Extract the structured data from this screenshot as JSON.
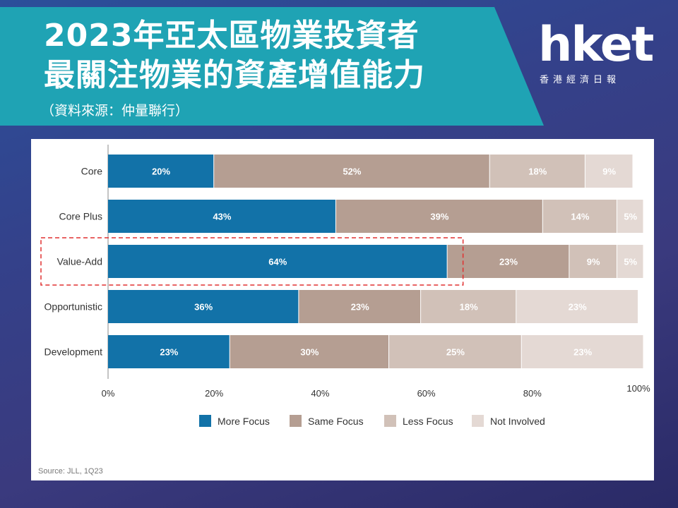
{
  "header": {
    "title_line1": "2023年亞太區物業投資者",
    "title_line2": "最關注物業的資產增值能力",
    "source_note": "（資料來源：仲量聯行）"
  },
  "logo": {
    "main": "hket",
    "subtitle": "香港經濟日報"
  },
  "colors": {
    "more_focus": "#1272a8",
    "same_focus": "#b59e92",
    "less_focus": "#d1c1b8",
    "not_involved": "#e4d9d4",
    "highlight": "#e03030"
  },
  "chart_data": {
    "type": "bar",
    "orientation": "horizontal",
    "stacked": true,
    "categories": [
      "Core",
      "Core Plus",
      "Value-Add",
      "Opportunistic",
      "Development"
    ],
    "series": [
      {
        "name": "More Focus",
        "values": [
          20,
          43,
          64,
          36,
          23
        ]
      },
      {
        "name": "Same Focus",
        "values": [
          52,
          39,
          23,
          23,
          30
        ]
      },
      {
        "name": "Less Focus",
        "values": [
          18,
          14,
          9,
          18,
          25
        ]
      },
      {
        "name": "Not Involved",
        "values": [
          9,
          5,
          5,
          23,
          23
        ]
      }
    ],
    "value_labels": [
      [
        "20%",
        "52%",
        "18%",
        "9%"
      ],
      [
        "43%",
        "39%",
        "14%",
        "5%"
      ],
      [
        "64%",
        "23%",
        "9%",
        "5%"
      ],
      [
        "36%",
        "23%",
        "18%",
        "23%"
      ],
      [
        "23%",
        "30%",
        "25%",
        "23%"
      ]
    ],
    "x_ticks": [
      "0%",
      "20%",
      "40%",
      "60%",
      "80%",
      "100%"
    ],
    "xlim": [
      0,
      100
    ],
    "legend_placement": "bottom",
    "highlighted_category": "Value-Add",
    "source": "Source: JLL, 1Q23"
  }
}
